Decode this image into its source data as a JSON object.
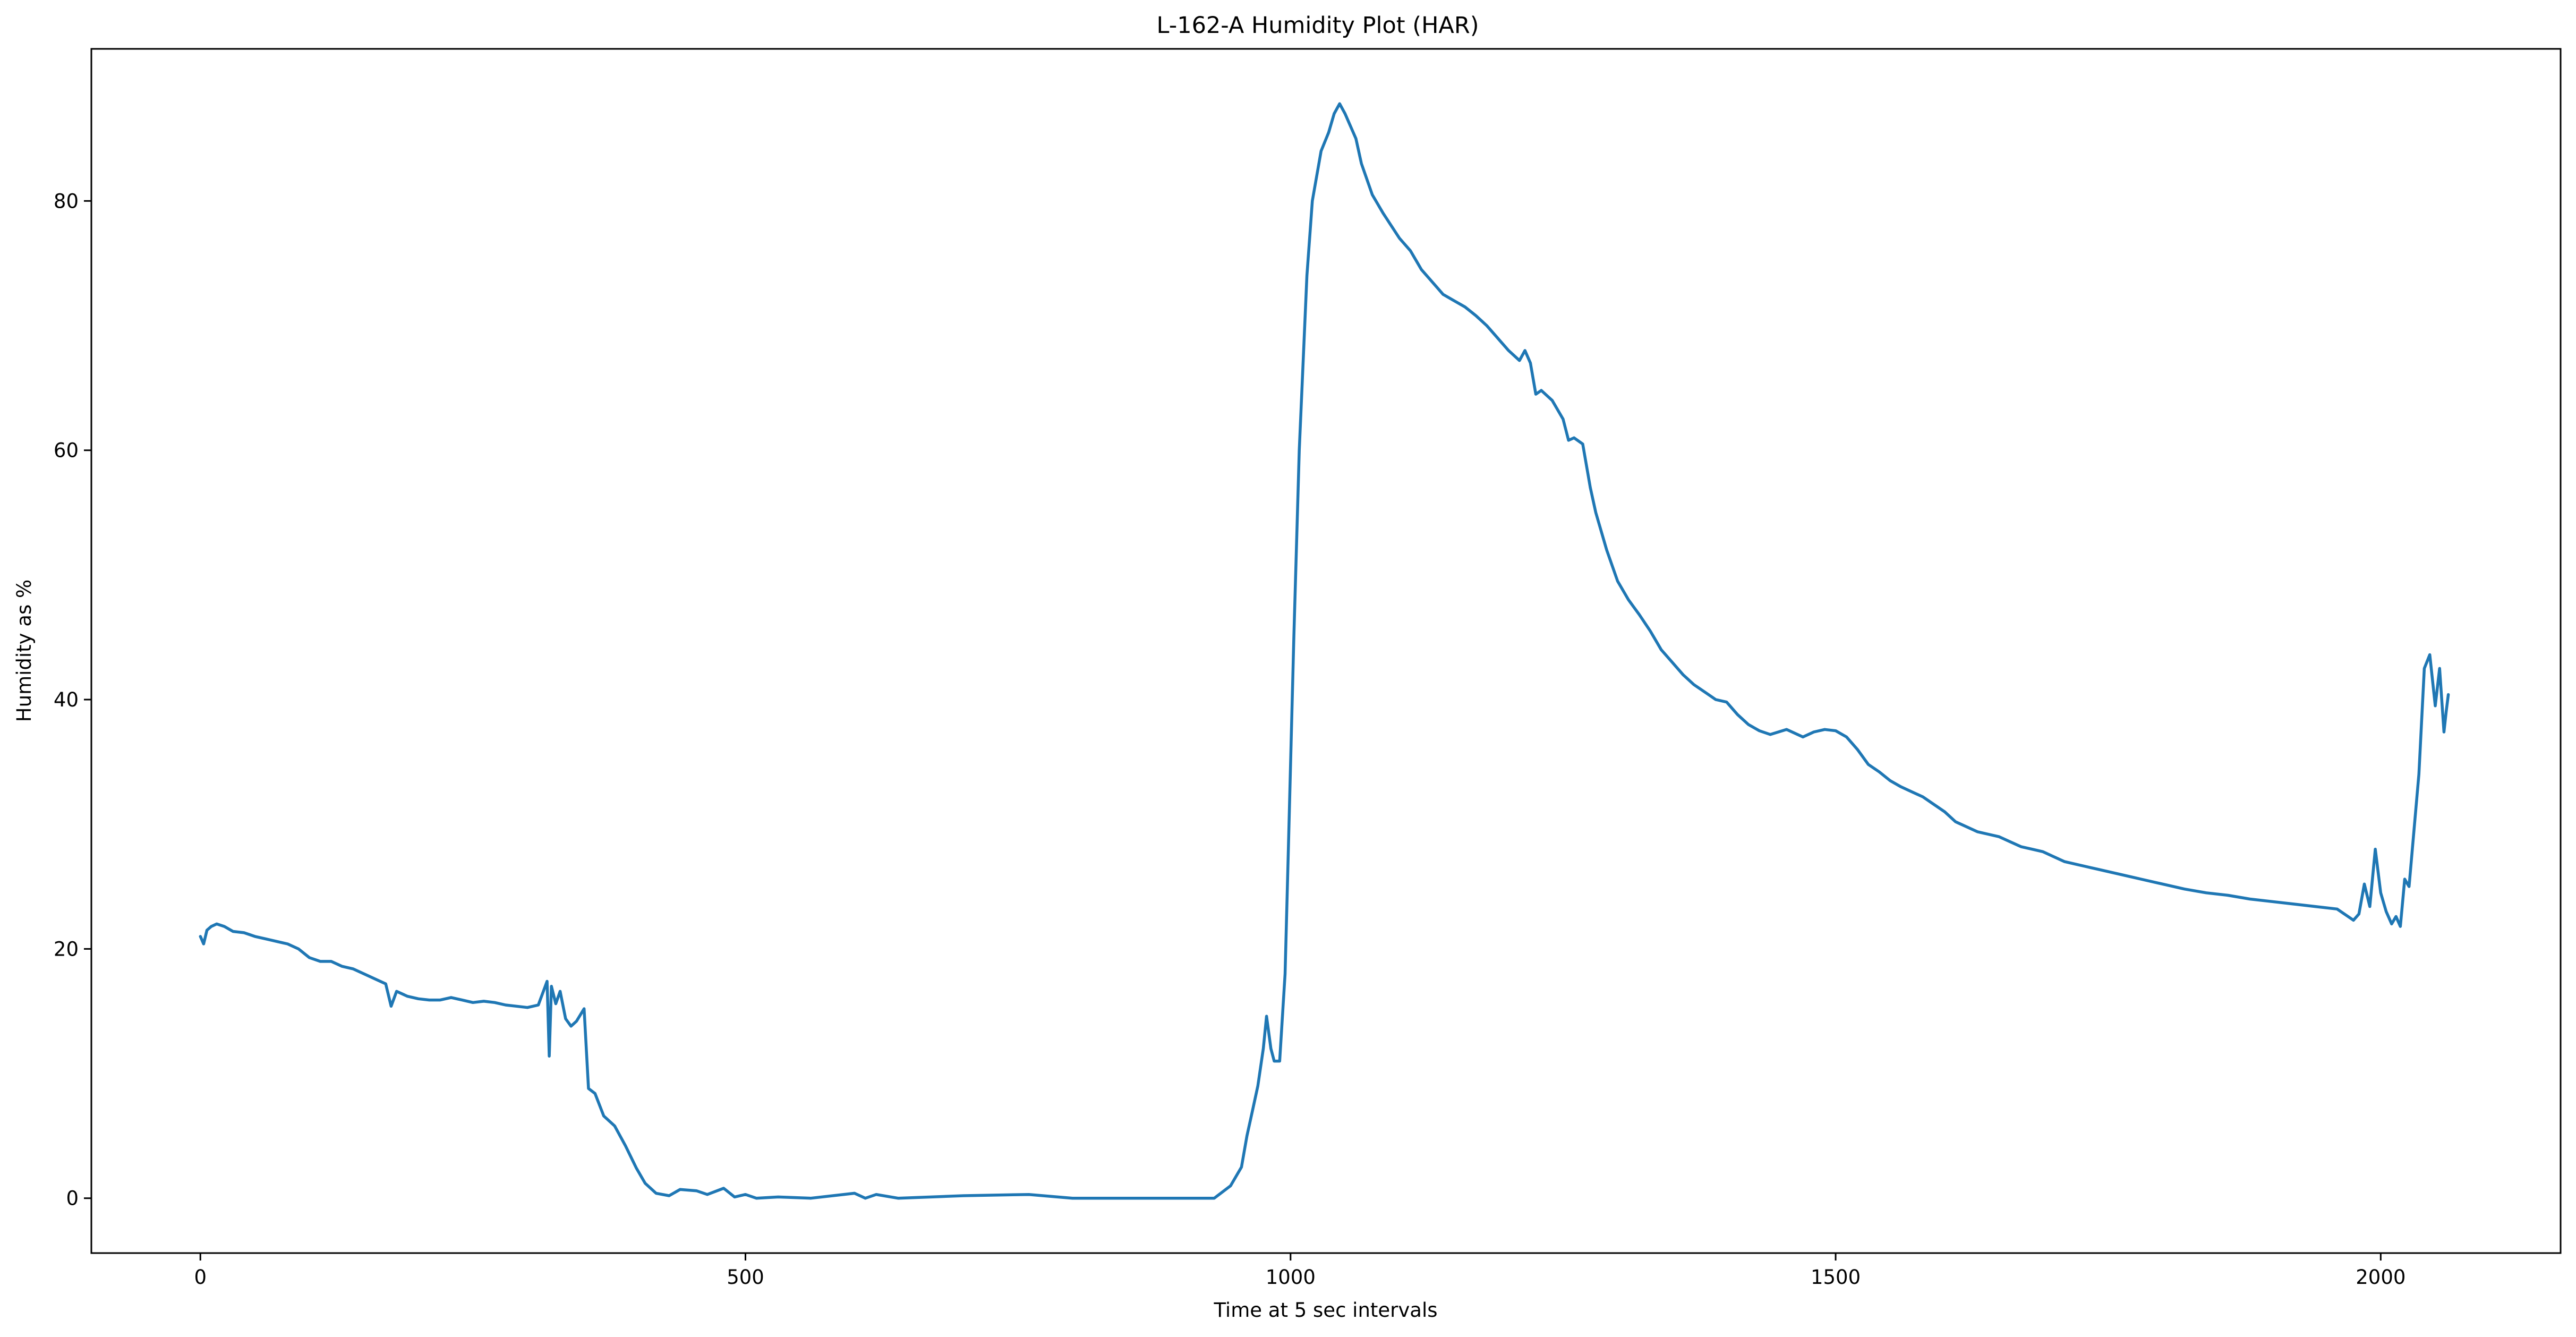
{
  "chart_data": {
    "type": "line",
    "title": "L-162-A Humidity Plot (HAR)",
    "xlabel": "Time at 5 sec intervals",
    "ylabel": "Humidity as %",
    "xlim": [
      -100,
      2165
    ],
    "ylim": [
      -4.4,
      92.2
    ],
    "grid": false,
    "legend": "none",
    "x_ticks": [
      0,
      500,
      1000,
      1500,
      2000
    ],
    "y_ticks": [
      0,
      20,
      40,
      60,
      80
    ],
    "x_tick_labels": [
      "0",
      "500",
      "1000",
      "1500",
      "2000"
    ],
    "y_tick_labels": [
      "0",
      "20",
      "40",
      "60",
      "80"
    ],
    "series": [
      {
        "color": "#1f77b4",
        "points": [
          [
            0,
            21.0
          ],
          [
            3,
            20.4
          ],
          [
            6,
            21.5
          ],
          [
            10,
            21.8
          ],
          [
            15,
            22.0
          ],
          [
            22,
            21.8
          ],
          [
            30,
            21.4
          ],
          [
            40,
            21.3
          ],
          [
            50,
            21.0
          ],
          [
            60,
            20.8
          ],
          [
            70,
            20.6
          ],
          [
            80,
            20.4
          ],
          [
            90,
            20.0
          ],
          [
            100,
            19.3
          ],
          [
            110,
            19.0
          ],
          [
            120,
            19.0
          ],
          [
            130,
            18.6
          ],
          [
            140,
            18.4
          ],
          [
            150,
            18.0
          ],
          [
            160,
            17.6
          ],
          [
            170,
            17.2
          ],
          [
            175,
            15.4
          ],
          [
            180,
            16.6
          ],
          [
            190,
            16.2
          ],
          [
            200,
            16.0
          ],
          [
            210,
            15.9
          ],
          [
            220,
            15.9
          ],
          [
            230,
            16.1
          ],
          [
            240,
            15.9
          ],
          [
            250,
            15.7
          ],
          [
            260,
            15.8
          ],
          [
            270,
            15.7
          ],
          [
            280,
            15.5
          ],
          [
            290,
            15.4
          ],
          [
            300,
            15.3
          ],
          [
            310,
            15.5
          ],
          [
            318,
            17.4
          ],
          [
            320,
            11.4
          ],
          [
            322,
            17.0
          ],
          [
            326,
            15.6
          ],
          [
            330,
            16.6
          ],
          [
            335,
            14.4
          ],
          [
            340,
            13.8
          ],
          [
            345,
            14.2
          ],
          [
            352,
            15.2
          ],
          [
            356,
            8.8
          ],
          [
            362,
            8.4
          ],
          [
            370,
            6.6
          ],
          [
            380,
            5.8
          ],
          [
            390,
            4.2
          ],
          [
            400,
            2.4
          ],
          [
            408,
            1.2
          ],
          [
            418,
            0.4
          ],
          [
            430,
            0.2
          ],
          [
            440,
            0.7
          ],
          [
            455,
            0.6
          ],
          [
            465,
            0.3
          ],
          [
            480,
            0.8
          ],
          [
            490,
            0.1
          ],
          [
            500,
            0.3
          ],
          [
            510,
            0.0
          ],
          [
            530,
            0.1
          ],
          [
            560,
            0.0
          ],
          [
            600,
            0.4
          ],
          [
            610,
            0.0
          ],
          [
            620,
            0.3
          ],
          [
            640,
            0.0
          ],
          [
            700,
            0.2
          ],
          [
            760,
            0.3
          ],
          [
            800,
            0.0
          ],
          [
            850,
            0.0
          ],
          [
            930,
            0.0
          ],
          [
            945,
            1.0
          ],
          [
            955,
            2.5
          ],
          [
            960,
            5.0
          ],
          [
            965,
            7.0
          ],
          [
            970,
            9.0
          ],
          [
            975,
            12.0
          ],
          [
            978,
            14.6
          ],
          [
            982,
            12.0
          ],
          [
            985,
            11.0
          ],
          [
            990,
            11.0
          ],
          [
            995,
            18.0
          ],
          [
            998,
            28.0
          ],
          [
            1003,
            45.0
          ],
          [
            1008,
            60.0
          ],
          [
            1015,
            74.0
          ],
          [
            1020,
            80.0
          ],
          [
            1028,
            84.0
          ],
          [
            1035,
            85.5
          ],
          [
            1040,
            87.0
          ],
          [
            1045,
            87.8
          ],
          [
            1050,
            87.0
          ],
          [
            1060,
            85.0
          ],
          [
            1065,
            83.0
          ],
          [
            1075,
            80.5
          ],
          [
            1085,
            79.0
          ],
          [
            1100,
            77.0
          ],
          [
            1110,
            76.0
          ],
          [
            1120,
            74.5
          ],
          [
            1130,
            73.5
          ],
          [
            1140,
            72.5
          ],
          [
            1150,
            72.0
          ],
          [
            1160,
            71.5
          ],
          [
            1170,
            70.8
          ],
          [
            1180,
            70.0
          ],
          [
            1190,
            69.0
          ],
          [
            1200,
            68.0
          ],
          [
            1210,
            67.2
          ],
          [
            1215,
            68.0
          ],
          [
            1220,
            67.0
          ],
          [
            1225,
            64.5
          ],
          [
            1230,
            64.8
          ],
          [
            1240,
            64.0
          ],
          [
            1250,
            62.5
          ],
          [
            1255,
            60.8
          ],
          [
            1260,
            61.0
          ],
          [
            1268,
            60.5
          ],
          [
            1275,
            57.0
          ],
          [
            1280,
            55.0
          ],
          [
            1290,
            52.0
          ],
          [
            1300,
            49.5
          ],
          [
            1310,
            48.0
          ],
          [
            1320,
            46.8
          ],
          [
            1330,
            45.5
          ],
          [
            1340,
            44.0
          ],
          [
            1350,
            43.0
          ],
          [
            1360,
            42.0
          ],
          [
            1370,
            41.2
          ],
          [
            1380,
            40.6
          ],
          [
            1390,
            40.0
          ],
          [
            1400,
            39.8
          ],
          [
            1410,
            38.8
          ],
          [
            1420,
            38.0
          ],
          [
            1430,
            37.5
          ],
          [
            1440,
            37.2
          ],
          [
            1455,
            37.6
          ],
          [
            1470,
            37.0
          ],
          [
            1480,
            37.4
          ],
          [
            1490,
            37.6
          ],
          [
            1500,
            37.5
          ],
          [
            1510,
            37.0
          ],
          [
            1520,
            36.0
          ],
          [
            1530,
            34.8
          ],
          [
            1540,
            34.2
          ],
          [
            1550,
            33.5
          ],
          [
            1560,
            33.0
          ],
          [
            1570,
            32.6
          ],
          [
            1580,
            32.2
          ],
          [
            1590,
            31.6
          ],
          [
            1600,
            31.0
          ],
          [
            1610,
            30.2
          ],
          [
            1620,
            29.8
          ],
          [
            1630,
            29.4
          ],
          [
            1640,
            29.2
          ],
          [
            1650,
            29.0
          ],
          [
            1660,
            28.6
          ],
          [
            1670,
            28.2
          ],
          [
            1680,
            28.0
          ],
          [
            1690,
            27.8
          ],
          [
            1700,
            27.4
          ],
          [
            1710,
            27.0
          ],
          [
            1720,
            26.8
          ],
          [
            1730,
            26.6
          ],
          [
            1740,
            26.4
          ],
          [
            1760,
            26.0
          ],
          [
            1780,
            25.6
          ],
          [
            1800,
            25.2
          ],
          [
            1820,
            24.8
          ],
          [
            1840,
            24.5
          ],
          [
            1860,
            24.3
          ],
          [
            1880,
            24.0
          ],
          [
            1900,
            23.8
          ],
          [
            1920,
            23.6
          ],
          [
            1940,
            23.4
          ],
          [
            1960,
            23.2
          ],
          [
            1970,
            22.6
          ],
          [
            1975,
            22.3
          ],
          [
            1980,
            22.8
          ],
          [
            1985,
            25.2
          ],
          [
            1990,
            23.4
          ],
          [
            1995,
            28.0
          ],
          [
            2000,
            24.5
          ],
          [
            2005,
            23.0
          ],
          [
            2010,
            22.0
          ],
          [
            2014,
            22.6
          ],
          [
            2018,
            21.8
          ],
          [
            2022,
            25.6
          ],
          [
            2026,
            25.0
          ],
          [
            2030,
            29.0
          ],
          [
            2035,
            34.0
          ],
          [
            2040,
            42.5
          ],
          [
            2045,
            43.6
          ],
          [
            2050,
            39.5
          ],
          [
            2054,
            42.5
          ],
          [
            2058,
            37.4
          ],
          [
            2060,
            39.0
          ],
          [
            2062,
            40.4
          ]
        ]
      }
    ]
  }
}
